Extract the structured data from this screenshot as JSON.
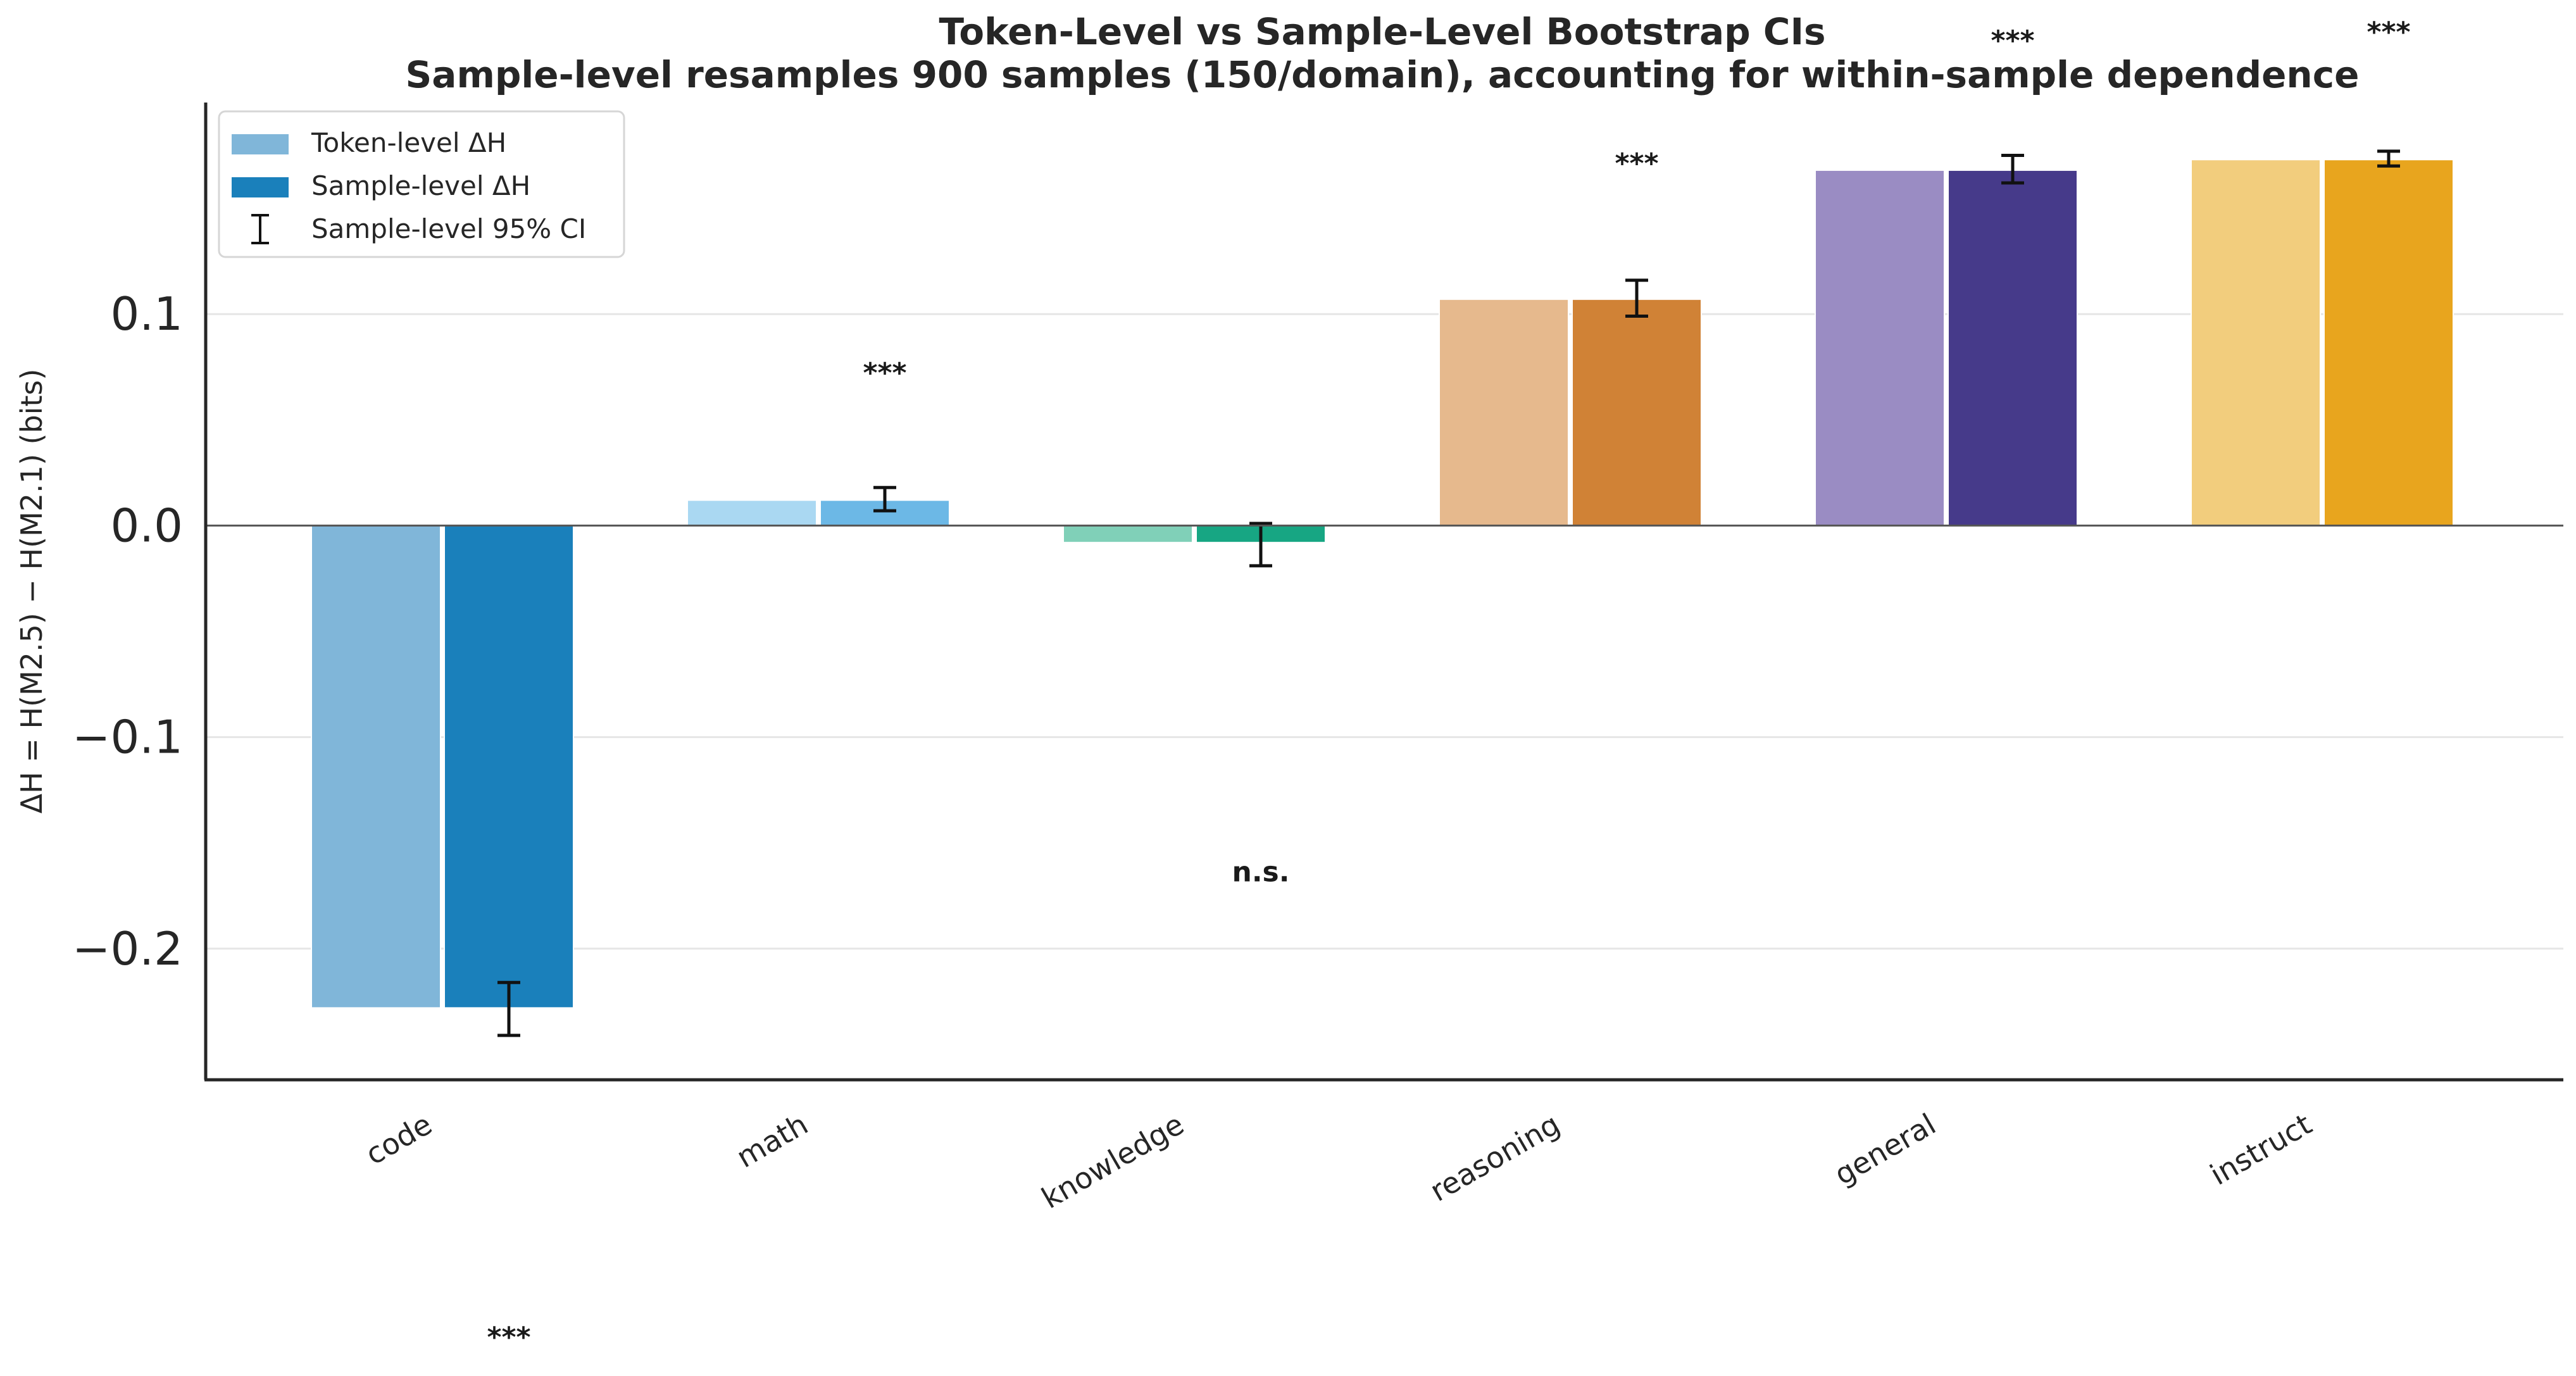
{
  "chart_data": {
    "type": "bar",
    "title": "Token-Level vs Sample-Level Bootstrap CIs",
    "subtitle": "Sample-level resamples 900 samples (150/domain), accounting for within-sample dependence",
    "xlabel": "",
    "ylabel": "ΔH = H(M2.5) − H(M2.1) (bits)",
    "ylim": [
      -0.262,
      0.2
    ],
    "yticks": [
      {
        "value": -0.2,
        "label": "−0.2"
      },
      {
        "value": -0.1,
        "label": "−0.1"
      },
      {
        "value": 0.0,
        "label": "0.0"
      },
      {
        "value": 0.1,
        "label": "0.1"
      }
    ],
    "grid": "y",
    "legend_position": "top-left",
    "categories": [
      "code",
      "math",
      "knowledge",
      "reasoning",
      "general",
      "instruct"
    ],
    "series": [
      {
        "name": "Token-level ΔH",
        "values": [
          -0.228,
          0.012,
          -0.008,
          0.107,
          0.168,
          0.173
        ]
      },
      {
        "name": "Sample-level ΔH",
        "values": [
          -0.228,
          0.012,
          -0.008,
          0.107,
          0.168,
          0.173
        ],
        "ci_low": [
          -0.241,
          0.007,
          -0.019,
          0.099,
          0.162,
          0.17
        ],
        "ci_high": [
          -0.216,
          0.018,
          0.001,
          0.116,
          0.175,
          0.177
        ]
      }
    ],
    "ci_legend": "Sample-level 95% CI",
    "significance": [
      {
        "category": "code",
        "label": "***",
        "y": -0.384
      },
      {
        "category": "math",
        "label": "***",
        "y": 0.072
      },
      {
        "category": "knowledge",
        "label": "n.s.",
        "y": -0.164
      },
      {
        "category": "reasoning",
        "label": "***",
        "y": 0.171
      },
      {
        "category": "general",
        "label": "***",
        "y": 0.229
      },
      {
        "category": "instruct",
        "label": "***",
        "y": 0.233
      }
    ],
    "colors": {
      "token": [
        "#80b6d9",
        "#aad8f2",
        "#80d0b8",
        "#e6b98d",
        "#9a8cc3",
        "#f2cd7d"
      ],
      "sample": [
        "#1a80bb",
        "#6cb8e6",
        "#17a683",
        "#d08236",
        "#463a8a",
        "#e8a51e"
      ],
      "legend_token": "#80b6d9",
      "legend_sample": "#1a80bb"
    }
  }
}
